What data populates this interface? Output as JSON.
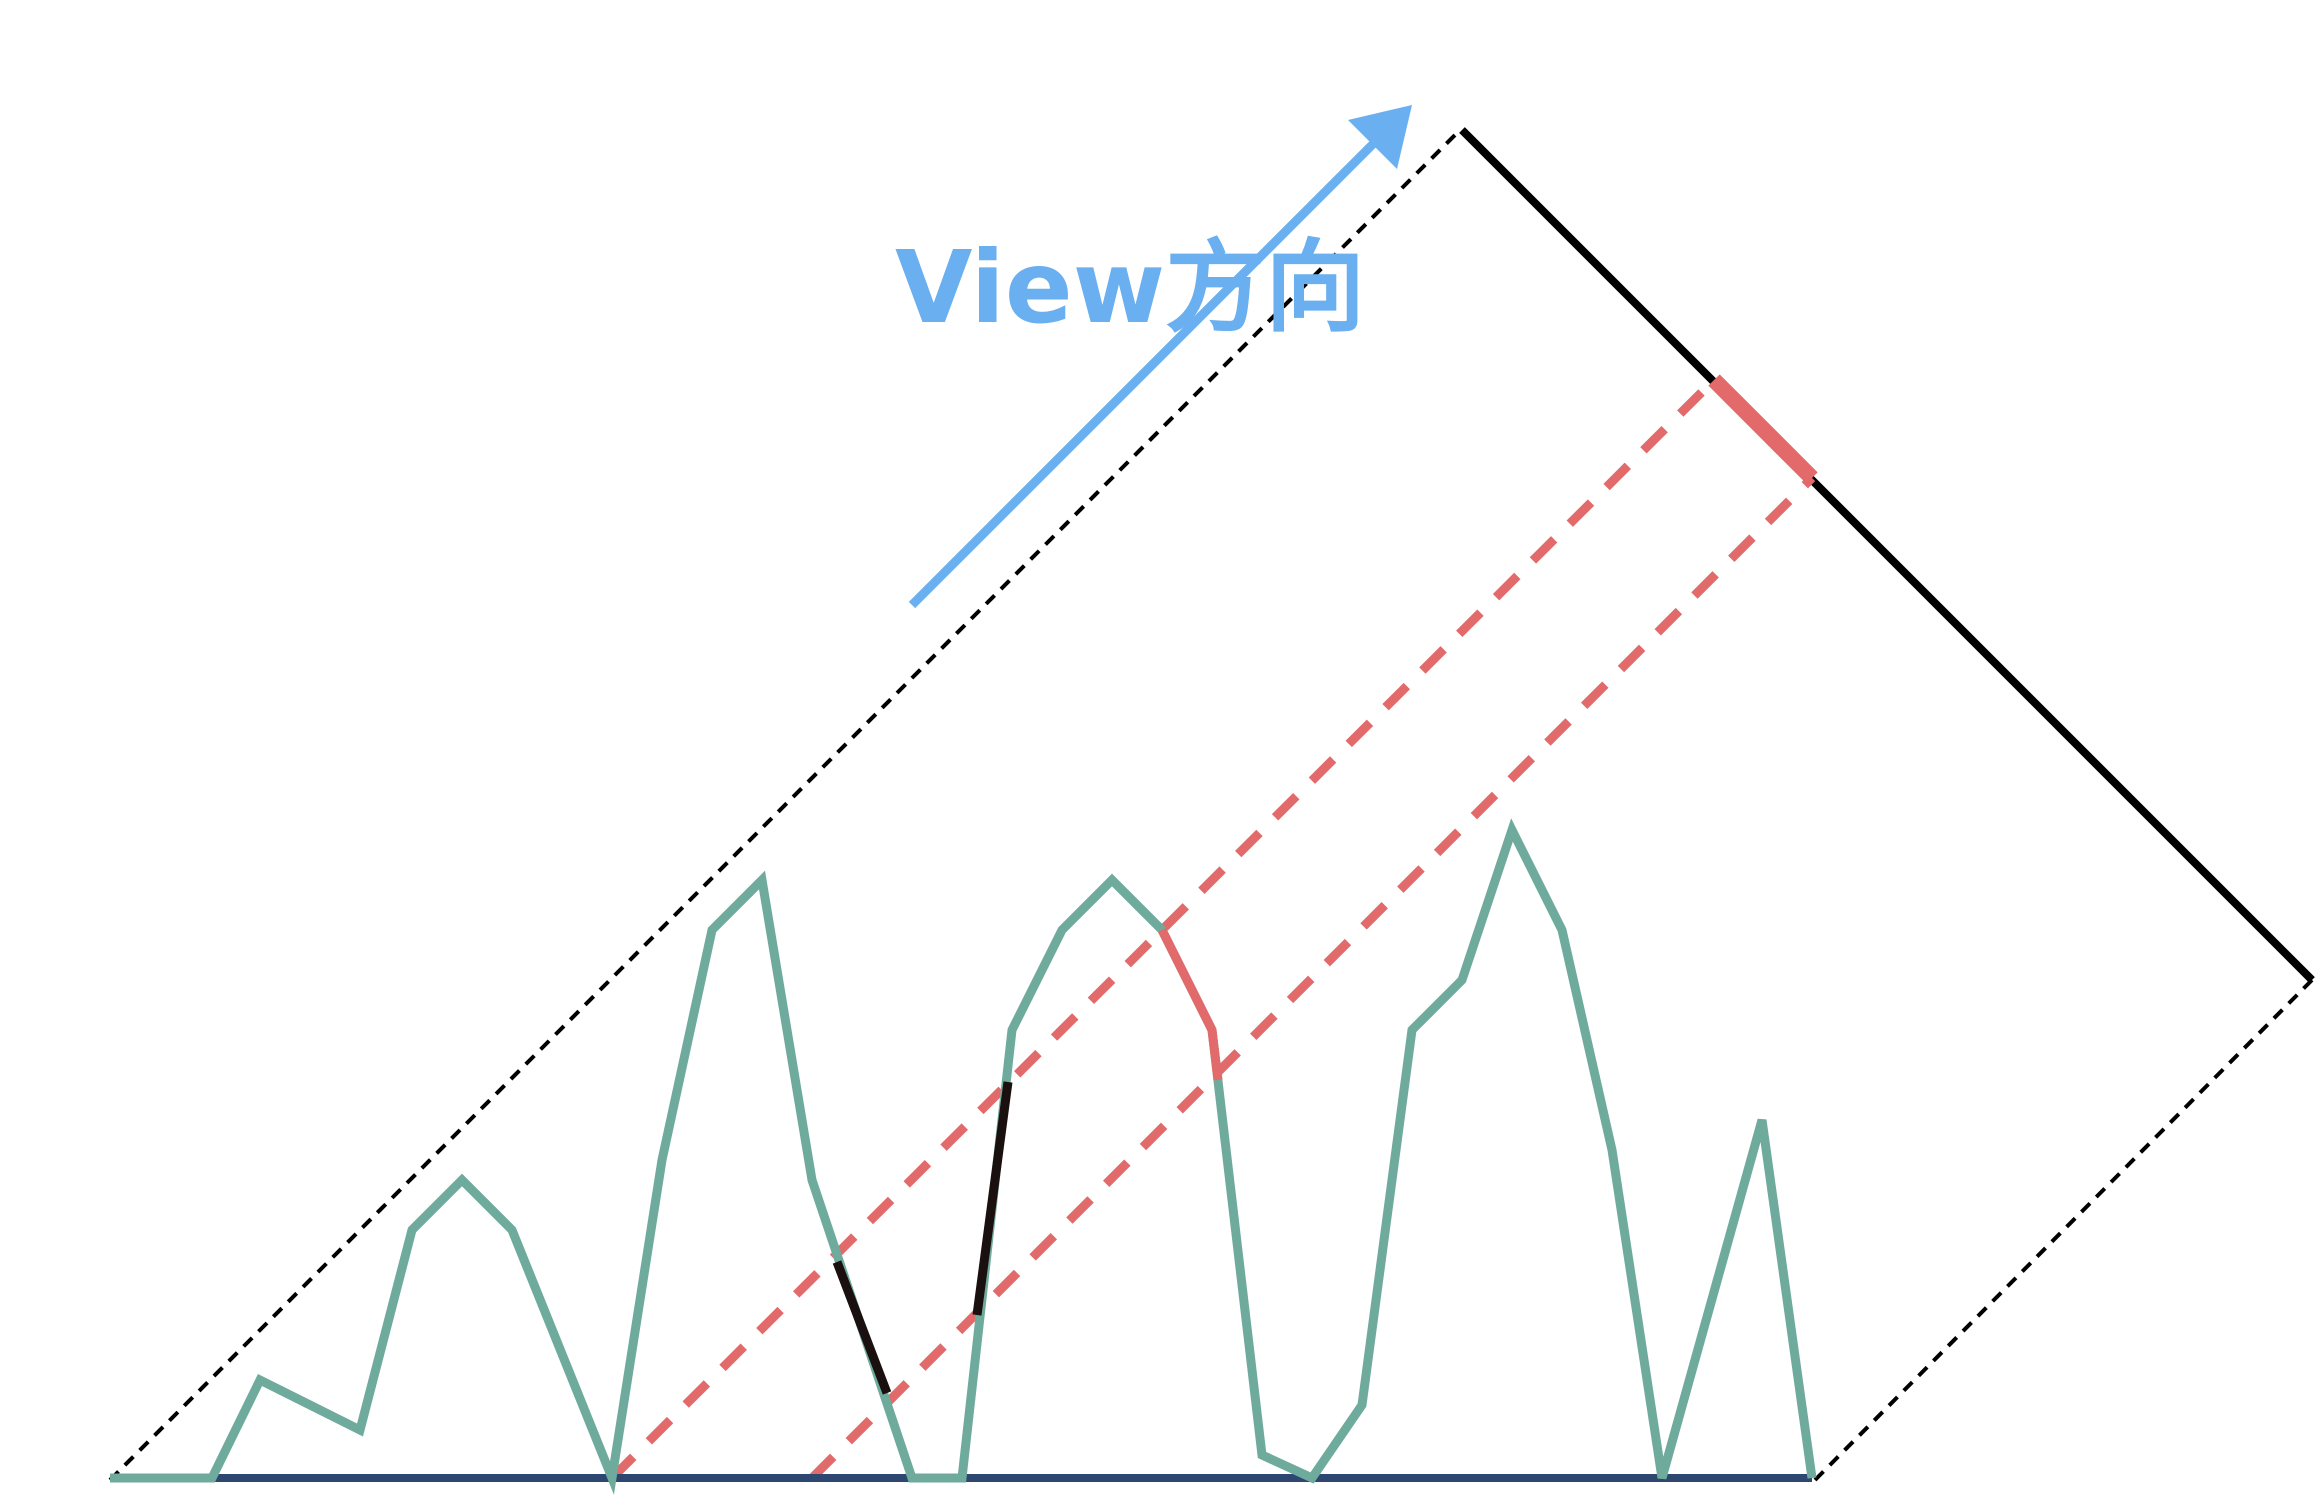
{
  "diagram": {
    "label": "View方向",
    "colors": {
      "terrain": "#6fab9c",
      "ground": "#2e4770",
      "projection": "#e36a6a",
      "occlusion_edge": "#1a1010",
      "outline": "#000000",
      "view_arrow": "#6aafef",
      "background": "#ffffff"
    }
  }
}
